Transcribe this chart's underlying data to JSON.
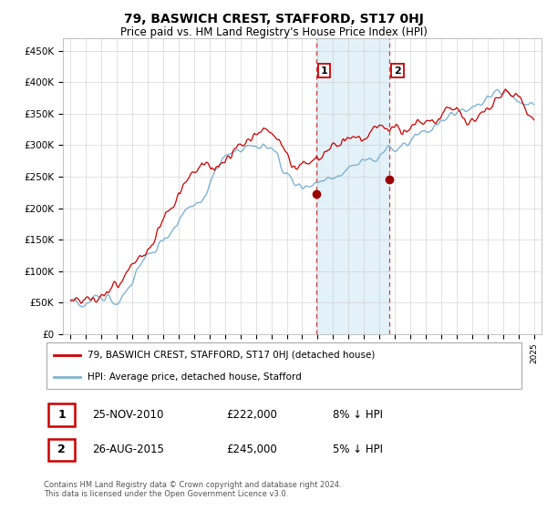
{
  "title": "79, BASWICH CREST, STAFFORD, ST17 0HJ",
  "subtitle": "Price paid vs. HM Land Registry's House Price Index (HPI)",
  "ylabel_ticks": [
    "£0",
    "£50K",
    "£100K",
    "£150K",
    "£200K",
    "£250K",
    "£300K",
    "£350K",
    "£400K",
    "£450K"
  ],
  "ylim": [
    0,
    470000
  ],
  "yticks": [
    0,
    50000,
    100000,
    150000,
    200000,
    250000,
    300000,
    350000,
    400000,
    450000
  ],
  "hpi_color": "#7fb3d3",
  "price_color": "#cc0000",
  "marker_color": "#990000",
  "sale1_year": 2010.9,
  "sale1_price": 222000,
  "sale2_year": 2015.65,
  "sale2_price": 245000,
  "legend_label1": "79, BASWICH CREST, STAFFORD, ST17 0HJ (detached house)",
  "legend_label2": "HPI: Average price, detached house, Stafford",
  "table_row1": [
    "1",
    "25-NOV-2010",
    "£222,000",
    "8% ↓ HPI"
  ],
  "table_row2": [
    "2",
    "26-AUG-2015",
    "£245,000",
    "5% ↓ HPI"
  ],
  "footer": "Contains HM Land Registry data © Crown copyright and database right 2024.\nThis data is licensed under the Open Government Licence v3.0.",
  "background_color": "#ffffff",
  "shade_color": "#ddeef8",
  "grid_color": "#cccccc",
  "title_fontsize": 10,
  "subtitle_fontsize": 8.5
}
